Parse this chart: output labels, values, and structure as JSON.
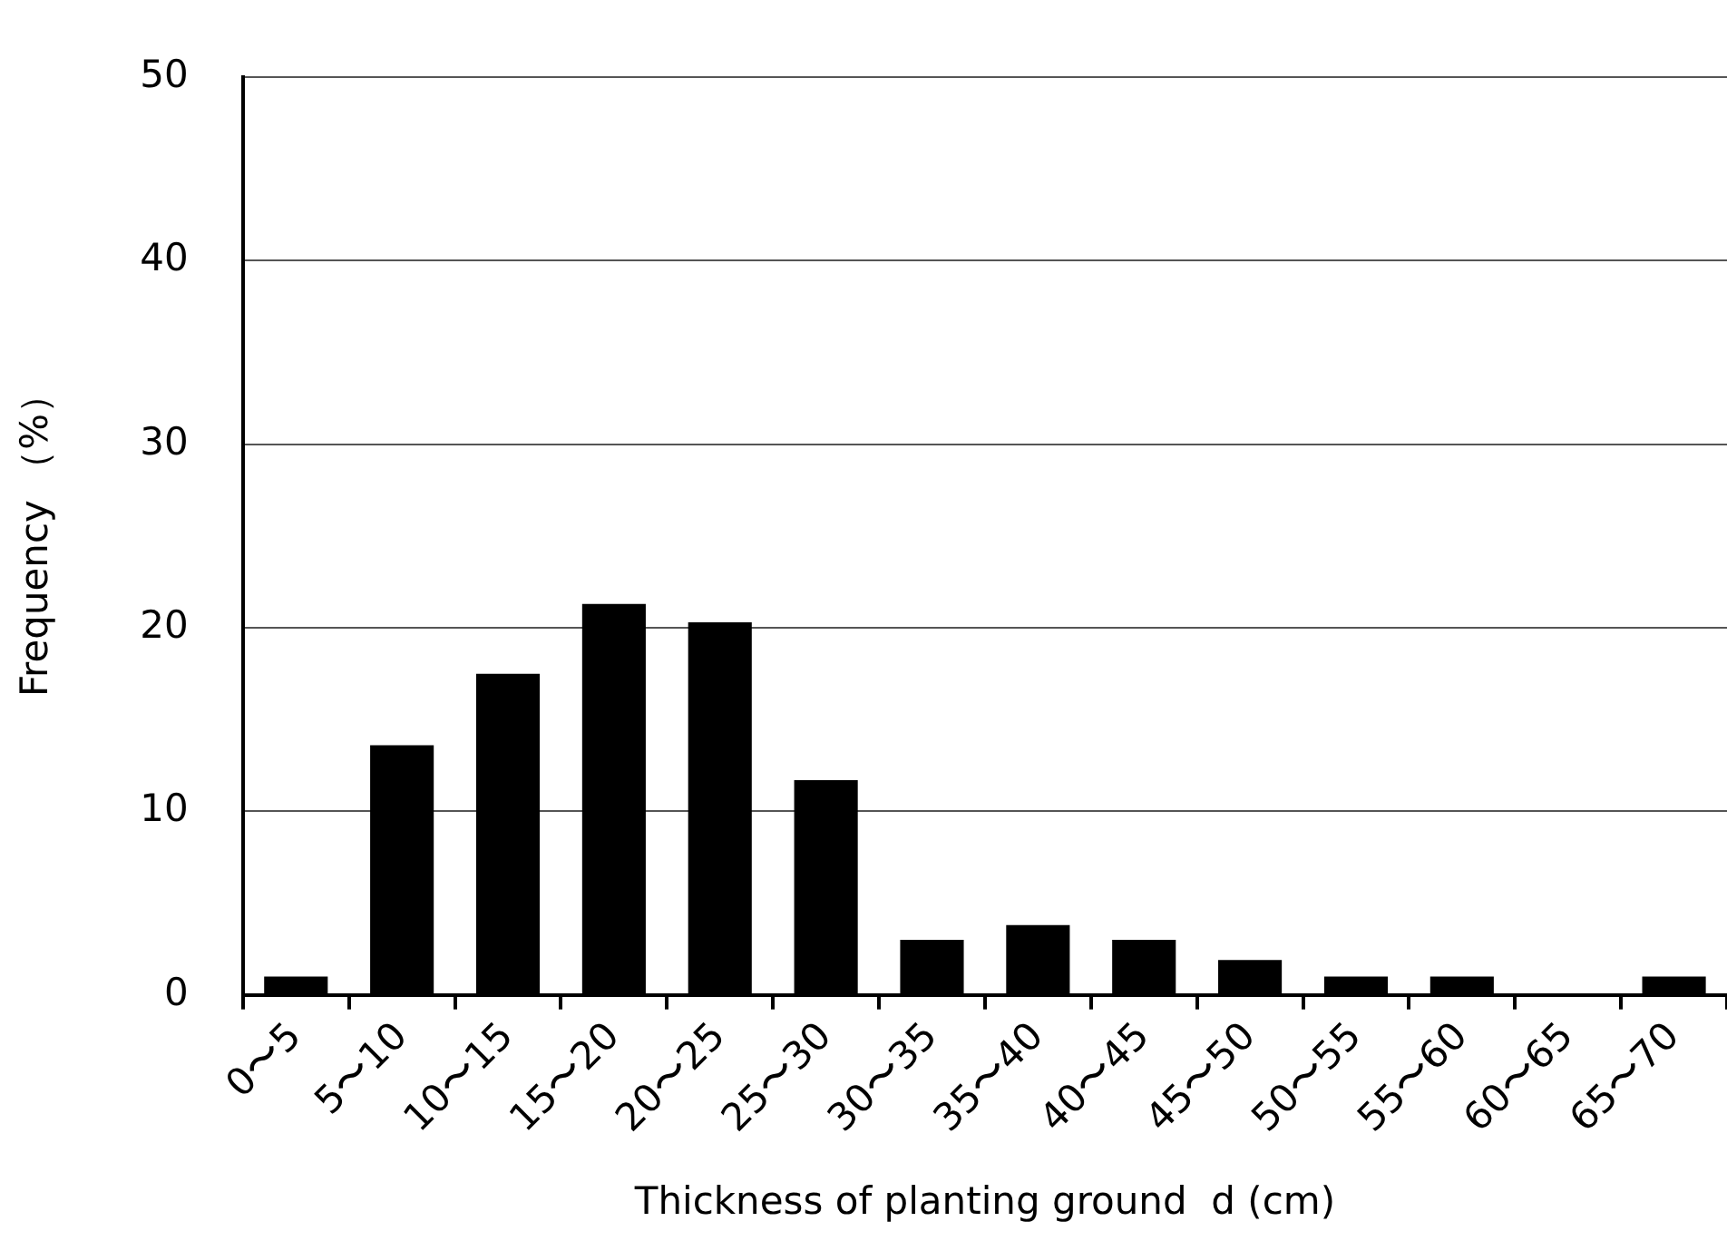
{
  "chart_data": {
    "type": "bar",
    "xlabel": "Thickness of planting ground  d (cm)",
    "ylabel": "Frequency （%）",
    "categories": [
      "0〜5",
      "5〜10",
      "10〜15",
      "15〜20",
      "20〜25",
      "25〜30",
      "30〜35",
      "35〜40",
      "40〜45",
      "45〜50",
      "50〜55",
      "55〜60",
      "60〜65",
      "65〜70"
    ],
    "values": [
      1.0,
      13.6,
      17.5,
      21.3,
      20.3,
      11.7,
      3.0,
      3.8,
      3.0,
      1.9,
      1.0,
      1.0,
      0,
      1.0
    ],
    "color": "#000000",
    "ylim": [
      0,
      50
    ],
    "yticks": [
      0,
      10,
      20,
      30,
      40,
      50
    ],
    "grid": "y",
    "legend": false
  }
}
